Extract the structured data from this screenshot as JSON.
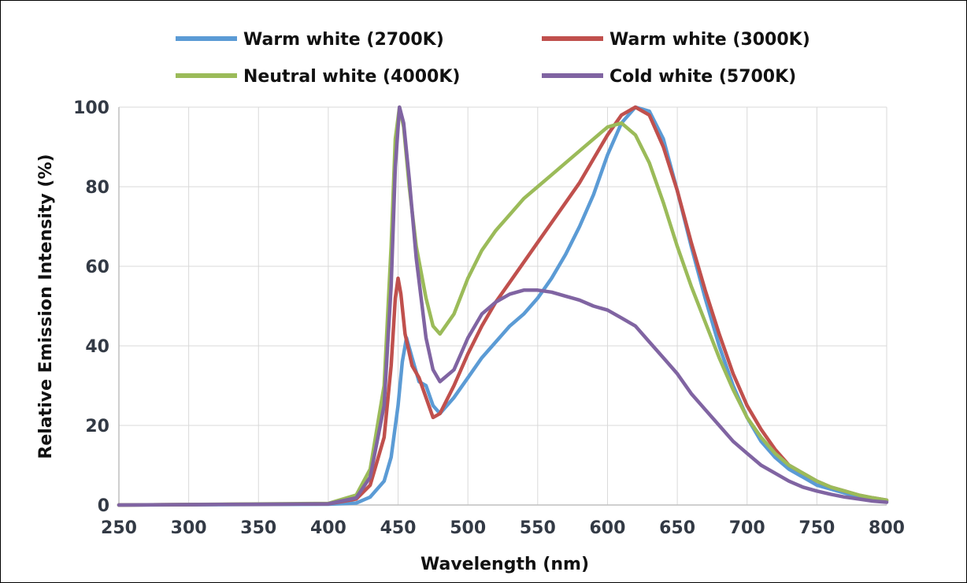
{
  "chart_data": {
    "type": "line",
    "title": "",
    "xlabel": "Wavelength (nm)",
    "ylabel": "Relative Emission Intensity (%)",
    "xlim": [
      250,
      800
    ],
    "ylim": [
      0,
      100
    ],
    "xticks": [
      250,
      300,
      350,
      400,
      450,
      500,
      550,
      600,
      650,
      700,
      750,
      800
    ],
    "yticks": [
      0,
      20,
      40,
      60,
      80,
      100
    ],
    "grid": true,
    "legend_position": "top",
    "series": [
      {
        "name": "Warm white (2700K)",
        "color": "#5b9bd5",
        "points": [
          [
            250,
            0
          ],
          [
            400,
            0.2
          ],
          [
            420,
            0.5
          ],
          [
            430,
            2
          ],
          [
            440,
            6
          ],
          [
            445,
            12
          ],
          [
            450,
            25
          ],
          [
            453,
            36
          ],
          [
            456,
            42
          ],
          [
            460,
            37
          ],
          [
            465,
            31
          ],
          [
            470,
            30
          ],
          [
            475,
            25
          ],
          [
            480,
            23
          ],
          [
            490,
            27
          ],
          [
            500,
            32
          ],
          [
            510,
            37
          ],
          [
            520,
            41
          ],
          [
            530,
            45
          ],
          [
            540,
            48
          ],
          [
            550,
            52
          ],
          [
            560,
            57
          ],
          [
            570,
            63
          ],
          [
            580,
            70
          ],
          [
            590,
            78
          ],
          [
            600,
            88
          ],
          [
            610,
            96
          ],
          [
            620,
            100
          ],
          [
            630,
            99
          ],
          [
            640,
            92
          ],
          [
            650,
            79
          ],
          [
            660,
            65
          ],
          [
            670,
            52
          ],
          [
            680,
            40
          ],
          [
            690,
            30
          ],
          [
            700,
            22
          ],
          [
            710,
            16
          ],
          [
            720,
            12
          ],
          [
            730,
            9
          ],
          [
            740,
            7
          ],
          [
            750,
            5
          ],
          [
            760,
            4
          ],
          [
            770,
            3
          ],
          [
            780,
            2
          ],
          [
            790,
            1.5
          ],
          [
            800,
            1
          ]
        ]
      },
      {
        "name": "Warm white (3000K)",
        "color": "#c0504d",
        "points": [
          [
            250,
            0
          ],
          [
            400,
            0.3
          ],
          [
            420,
            1.5
          ],
          [
            430,
            5
          ],
          [
            440,
            17
          ],
          [
            445,
            35
          ],
          [
            448,
            52
          ],
          [
            450,
            57
          ],
          [
            452,
            53
          ],
          [
            455,
            43
          ],
          [
            460,
            35
          ],
          [
            465,
            32
          ],
          [
            470,
            27
          ],
          [
            475,
            22
          ],
          [
            480,
            23
          ],
          [
            490,
            30
          ],
          [
            500,
            38
          ],
          [
            510,
            45
          ],
          [
            520,
            51
          ],
          [
            530,
            56
          ],
          [
            540,
            61
          ],
          [
            550,
            66
          ],
          [
            560,
            71
          ],
          [
            570,
            76
          ],
          [
            580,
            81
          ],
          [
            590,
            87
          ],
          [
            600,
            93
          ],
          [
            610,
            98
          ],
          [
            620,
            100
          ],
          [
            630,
            98
          ],
          [
            640,
            90
          ],
          [
            650,
            79
          ],
          [
            660,
            66
          ],
          [
            670,
            54
          ],
          [
            680,
            43
          ],
          [
            690,
            33
          ],
          [
            700,
            25
          ],
          [
            710,
            19
          ],
          [
            720,
            14
          ],
          [
            730,
            10
          ],
          [
            740,
            8
          ],
          [
            750,
            6
          ],
          [
            760,
            4.5
          ],
          [
            770,
            3.5
          ],
          [
            780,
            2.5
          ],
          [
            790,
            1.8
          ],
          [
            800,
            1.2
          ]
        ]
      },
      {
        "name": "Neutral white (4000K)",
        "color": "#9bbb59",
        "points": [
          [
            250,
            0
          ],
          [
            400,
            0.4
          ],
          [
            420,
            2.5
          ],
          [
            430,
            9
          ],
          [
            440,
            30
          ],
          [
            445,
            65
          ],
          [
            448,
            92
          ],
          [
            451,
            100
          ],
          [
            454,
            95
          ],
          [
            458,
            80
          ],
          [
            463,
            65
          ],
          [
            470,
            52
          ],
          [
            475,
            45
          ],
          [
            480,
            43
          ],
          [
            490,
            48
          ],
          [
            500,
            57
          ],
          [
            510,
            64
          ],
          [
            520,
            69
          ],
          [
            530,
            73
          ],
          [
            540,
            77
          ],
          [
            550,
            80
          ],
          [
            560,
            83
          ],
          [
            570,
            86
          ],
          [
            580,
            89
          ],
          [
            590,
            92
          ],
          [
            600,
            95
          ],
          [
            610,
            96
          ],
          [
            620,
            93
          ],
          [
            630,
            86
          ],
          [
            640,
            76
          ],
          [
            650,
            65
          ],
          [
            660,
            55
          ],
          [
            670,
            46
          ],
          [
            680,
            37
          ],
          [
            690,
            29
          ],
          [
            700,
            22
          ],
          [
            710,
            17
          ],
          [
            720,
            13
          ],
          [
            730,
            10
          ],
          [
            740,
            8
          ],
          [
            750,
            6
          ],
          [
            760,
            4.5
          ],
          [
            770,
            3.5
          ],
          [
            780,
            2.5
          ],
          [
            790,
            1.8
          ],
          [
            800,
            1.2
          ]
        ]
      },
      {
        "name": "Cold white (5700K)",
        "color": "#8064a2",
        "points": [
          [
            250,
            0
          ],
          [
            400,
            0.3
          ],
          [
            420,
            1.8
          ],
          [
            430,
            7
          ],
          [
            440,
            25
          ],
          [
            445,
            55
          ],
          [
            448,
            85
          ],
          [
            451,
            100
          ],
          [
            454,
            96
          ],
          [
            458,
            82
          ],
          [
            463,
            62
          ],
          [
            470,
            42
          ],
          [
            475,
            34
          ],
          [
            480,
            31
          ],
          [
            490,
            34
          ],
          [
            500,
            42
          ],
          [
            510,
            48
          ],
          [
            520,
            51
          ],
          [
            530,
            53
          ],
          [
            540,
            54
          ],
          [
            550,
            54
          ],
          [
            560,
            53.5
          ],
          [
            570,
            52.5
          ],
          [
            580,
            51.5
          ],
          [
            590,
            50
          ],
          [
            600,
            49
          ],
          [
            610,
            47
          ],
          [
            620,
            45
          ],
          [
            630,
            41
          ],
          [
            640,
            37
          ],
          [
            650,
            33
          ],
          [
            660,
            28
          ],
          [
            670,
            24
          ],
          [
            680,
            20
          ],
          [
            690,
            16
          ],
          [
            700,
            13
          ],
          [
            710,
            10
          ],
          [
            720,
            8
          ],
          [
            730,
            6
          ],
          [
            740,
            4.5
          ],
          [
            750,
            3.5
          ],
          [
            760,
            2.7
          ],
          [
            770,
            2
          ],
          [
            780,
            1.5
          ],
          [
            790,
            1
          ],
          [
            800,
            0.7
          ]
        ]
      }
    ]
  }
}
